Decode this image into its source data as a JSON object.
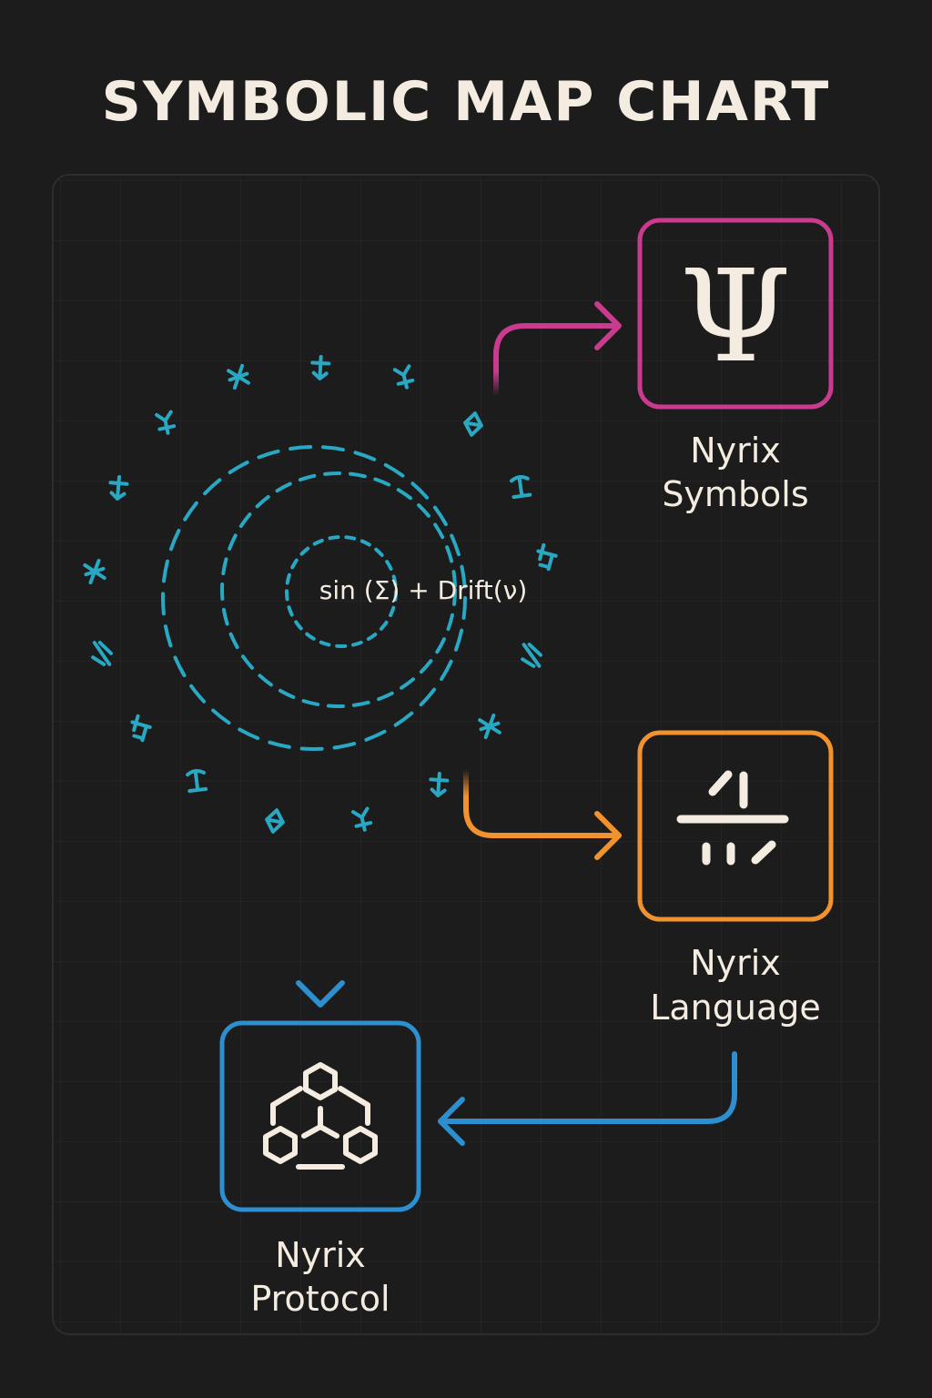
{
  "title": "SYMBOLIC MAP CHART",
  "formula": "sin (Σ) + Drift(ν)",
  "nodes": {
    "symbols": {
      "line1": "Nyrix",
      "line2": "Symbols",
      "icon": "psi-icon",
      "glyph": "Ψ"
    },
    "language": {
      "line1": "Nyrix",
      "line2": "Language",
      "icon": "glyph-cross-icon"
    },
    "protocol": {
      "line1": "Nyrix",
      "line2": "Protocol",
      "icon": "hexagon-network-icon"
    }
  },
  "colors": {
    "background": "#1d1c1c",
    "panel_border": "#2e2d2d",
    "grid": "#2a2929",
    "text": "#f4ece0",
    "cyan": "#29a8c4",
    "magenta": "#c83b8e",
    "orange": "#f2922f",
    "blue": "#2d8fd0"
  },
  "glyph_ring": {
    "count": 16,
    "glyph_names": [
      "rune-glyph-icon"
    ]
  }
}
